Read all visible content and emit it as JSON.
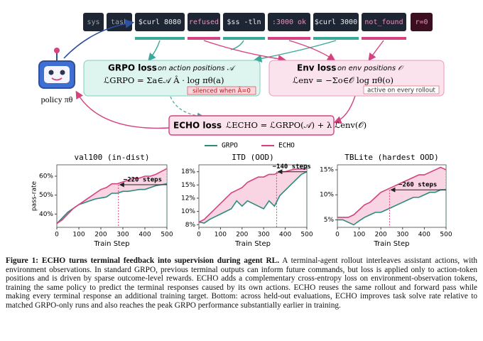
{
  "tokens": [
    "sys",
    "task",
    "$curl 8080",
    "refused",
    "$ss -tln",
    ":3000 ok",
    "$curl 3000",
    "not_found",
    "r=0"
  ],
  "policy_label": "policy πθ",
  "grpo_box": {
    "title": "GRPO loss",
    "subtitle": "on action positions 𝒜",
    "formula": "ℒGRPO = Σa∈𝒜 Â · log πθ(a)",
    "note": "silenced when Â=0"
  },
  "env_box": {
    "title": "Env loss",
    "subtitle": "on env positions 𝒪",
    "formula": "ℒenv = −Σo∈𝒪 log πθ(o)",
    "note": "active on every rollout"
  },
  "echo_box": {
    "title": "ECHO loss",
    "formula": "ℒECHO = ℒGRPO(𝒜) + λ ℒenv(𝒪)"
  },
  "chart_data": [
    {
      "type": "line",
      "title": "val100  (in-dist)",
      "xlabel": "Train Step",
      "ylabel": "pass-rate",
      "x": [
        0,
        25,
        50,
        75,
        100,
        125,
        150,
        175,
        200,
        225,
        250,
        275,
        300,
        325,
        350,
        375,
        400,
        425,
        450,
        475,
        500
      ],
      "series": [
        {
          "name": "GRPO",
          "color": "#2a8c7c",
          "values": [
            35,
            38,
            41,
            43,
            45,
            46,
            47,
            48,
            48.5,
            49,
            51,
            51,
            52,
            52,
            52.5,
            53,
            53,
            54,
            55,
            55.5,
            56
          ]
        },
        {
          "name": "ECHO",
          "color": "#d6417f",
          "values": [
            35,
            37,
            40,
            43,
            45,
            47,
            49,
            51,
            53,
            54,
            56,
            56,
            57,
            58,
            59,
            59,
            60,
            60,
            61,
            62.5,
            64
          ]
        }
      ],
      "xlim": [
        0,
        500
      ],
      "xticks": [
        0,
        100,
        200,
        300,
        400,
        500
      ],
      "ylim": [
        33,
        66
      ],
      "yticks": [
        {
          "value": 40,
          "label": "40%"
        },
        {
          "value": 50,
          "label": "50%"
        },
        {
          "value": 60,
          "label": "60%"
        }
      ],
      "annotations": [
        {
          "text": "−220 steps",
          "x": [
            280,
            500
          ],
          "y": 55.5
        }
      ]
    },
    {
      "type": "line",
      "title": "ITD  (OOD)",
      "xlabel": "Train Step",
      "x": [
        0,
        25,
        50,
        75,
        100,
        125,
        150,
        175,
        200,
        225,
        250,
        275,
        300,
        325,
        350,
        375,
        400,
        425,
        450,
        475,
        500
      ],
      "series": [
        {
          "name": "GRPO",
          "color": "#2a8c7c",
          "values": [
            8,
            7.8,
            8.5,
            9,
            9.5,
            10,
            10.5,
            12,
            11,
            12,
            11.5,
            11,
            10.5,
            12,
            11,
            13,
            14,
            15,
            16,
            17,
            17.5
          ]
        },
        {
          "name": "ECHO",
          "color": "#d6417f",
          "values": [
            8,
            8.5,
            9.5,
            10.5,
            11.5,
            12.5,
            13.5,
            14,
            14.5,
            15.5,
            16,
            16.5,
            16.5,
            17,
            17,
            17.5,
            17.5,
            17.8,
            18,
            18,
            18
          ]
        }
      ],
      "xlim": [
        0,
        500
      ],
      "xticks": [
        0,
        100,
        200,
        300,
        400,
        500
      ],
      "ylim": [
        7,
        18.8
      ],
      "yticks": [
        {
          "value": 7.5,
          "label": "8%"
        },
        {
          "value": 10,
          "label": "10%"
        },
        {
          "value": 12.5,
          "label": "12%"
        },
        {
          "value": 15,
          "label": "15%"
        },
        {
          "value": 17.5,
          "label": "18%"
        }
      ],
      "annotations": [
        {
          "text": "−140 steps",
          "x": [
            360,
            500
          ],
          "y": 17.5
        }
      ]
    },
    {
      "type": "line",
      "title": "TBLite  (hardest OOD)",
      "xlabel": "Train Step",
      "x": [
        0,
        25,
        50,
        75,
        100,
        125,
        150,
        175,
        200,
        225,
        250,
        275,
        300,
        325,
        350,
        375,
        400,
        425,
        450,
        475,
        500
      ],
      "series": [
        {
          "name": "GRPO",
          "color": "#2a8c7c",
          "values": [
            5,
            5,
            4.5,
            4,
            4.8,
            5.5,
            6,
            6.5,
            6.5,
            7,
            7.5,
            8,
            8.5,
            9,
            9.5,
            9.5,
            10,
            10.5,
            10.5,
            11,
            11
          ]
        },
        {
          "name": "ECHO",
          "color": "#d6417f",
          "values": [
            5.5,
            5.5,
            5.5,
            6,
            7,
            8,
            8.5,
            9.5,
            10.5,
            11,
            11.5,
            12,
            12.5,
            13,
            13.5,
            14,
            14,
            14.5,
            15,
            15.5,
            15
          ]
        }
      ],
      "xlim": [
        0,
        500
      ],
      "xticks": [
        0,
        100,
        200,
        300,
        400,
        500
      ],
      "ylim": [
        3.5,
        16
      ],
      "yticks": [
        {
          "value": 5,
          "label": "5%"
        },
        {
          "value": 10,
          "label": "10%"
        },
        {
          "value": 15,
          "label": "15%"
        }
      ],
      "annotations": [
        {
          "text": "−260 steps",
          "x": [
            240,
            500
          ],
          "y": 11
        }
      ]
    }
  ],
  "caption": {
    "label": "Figure 1:",
    "title": "ECHO turns terminal feedback into supervision during agent RL.",
    "text": "A terminal-agent rollout interleaves assistant actions, with environment observations. In standard GRPO, previous terminal outputs can inform future commands, but loss is applied only to action-token positions and is driven by sparse outcome-level rewards. ECHO adds a complementary cross-entropy loss on environment-observation tokens, training the same policy to predict the terminal responses caused by its own actions. ECHO reuses the same rollout and forward pass while making every terminal response an additional training target. Bottom: across held-out evaluations, ECHO improves task solve rate relative to matched GRPO-only runs and also reaches the peak GRPO performance substantially earlier in training."
  }
}
